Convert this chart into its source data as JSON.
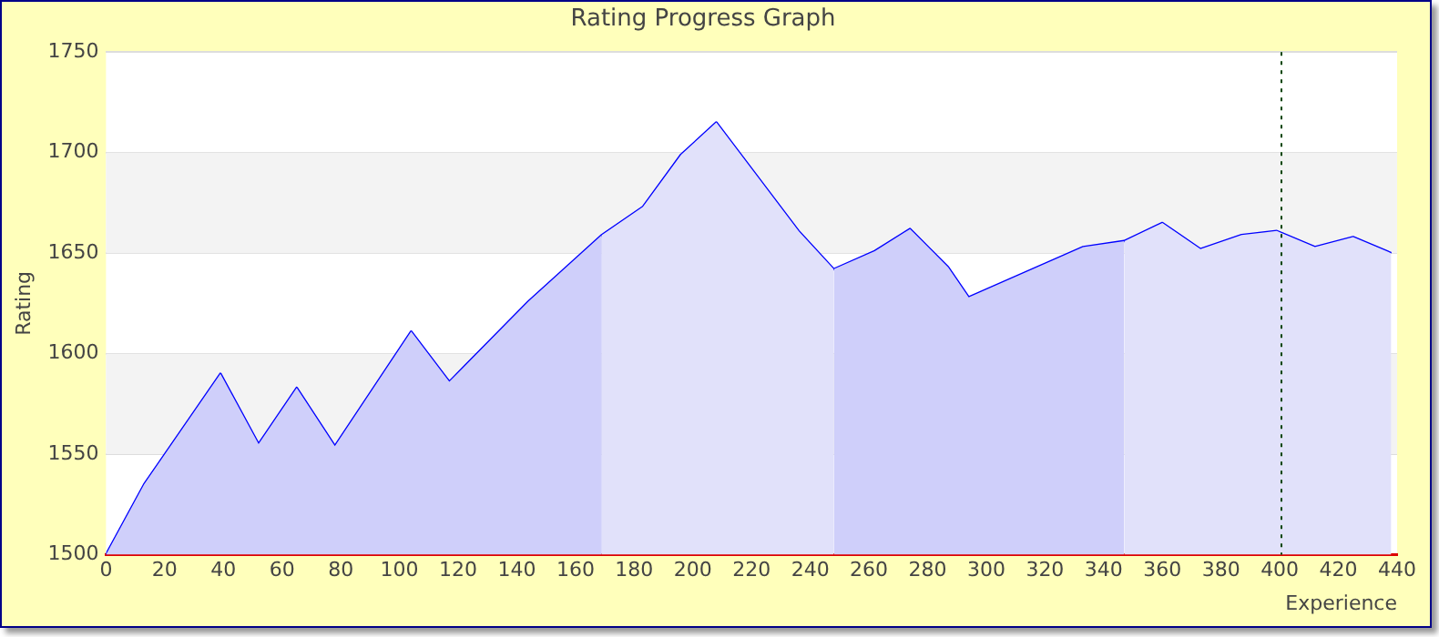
{
  "chart_data": {
    "type": "area",
    "title": "Rating Progress Graph",
    "xlabel": "Experience",
    "ylabel": "Rating",
    "xlim": [
      0,
      440
    ],
    "xticks": [
      0,
      20,
      40,
      60,
      80,
      100,
      120,
      140,
      160,
      180,
      200,
      220,
      240,
      260,
      280,
      300,
      320,
      340,
      360,
      380,
      400,
      420,
      440
    ],
    "ylim": [
      1500,
      1750
    ],
    "yticks": [
      1500,
      1550,
      1600,
      1650,
      1700,
      1750
    ],
    "grid": "y",
    "legend": false,
    "marker": "none",
    "series": [
      {
        "color": "#cfcffa",
        "x": [
          0,
          13,
          39,
          52,
          65,
          78,
          104,
          117,
          144,
          169
        ],
        "values": [
          1500,
          1535,
          1590,
          1555,
          1583,
          1554,
          1611,
          1586,
          1626,
          1659
        ]
      },
      {
        "color": "#e1e1fa",
        "x": [
          169,
          183,
          196,
          208,
          236,
          248
        ],
        "values": [
          1659,
          1673,
          1699,
          1715,
          1661,
          1642
        ]
      },
      {
        "color": "#cfcffa",
        "x": [
          248,
          262,
          274,
          287,
          294,
          333,
          347
        ],
        "values": [
          1642,
          1651,
          1662,
          1643,
          1628,
          1653,
          1656
        ]
      },
      {
        "color": "#e1e1fa",
        "x": [
          347,
          360,
          373,
          387,
          399,
          412,
          425,
          438
        ],
        "values": [
          1656,
          1665,
          1652,
          1659,
          1661,
          1653,
          1658,
          1650
        ]
      },
      {
        "type": "line",
        "color": "#0000ff",
        "x": [
          0,
          13,
          39,
          52,
          65,
          78,
          104,
          117,
          144,
          169,
          183,
          196,
          208,
          236,
          248,
          262,
          274,
          287,
          294,
          333,
          347,
          360,
          373,
          387,
          399,
          412,
          425,
          438
        ],
        "values": [
          1500,
          1535,
          1590,
          1555,
          1583,
          1554,
          1611,
          1586,
          1626,
          1659,
          1673,
          1699,
          1715,
          1661,
          1642,
          1651,
          1662,
          1643,
          1628,
          1653,
          1656,
          1665,
          1652,
          1659,
          1661,
          1653,
          1658,
          1650
        ]
      }
    ],
    "bands": [
      {
        "axis": "y",
        "from": 1550,
        "to": 1600,
        "color": "#f3f3f3"
      },
      {
        "axis": "y",
        "from": 1650,
        "to": 1700,
        "color": "#f3f3f3"
      }
    ],
    "ref_lines": [
      {
        "axis": "x",
        "value": 400,
        "color": "#004400",
        "line_style": "dotted"
      }
    ]
  }
}
